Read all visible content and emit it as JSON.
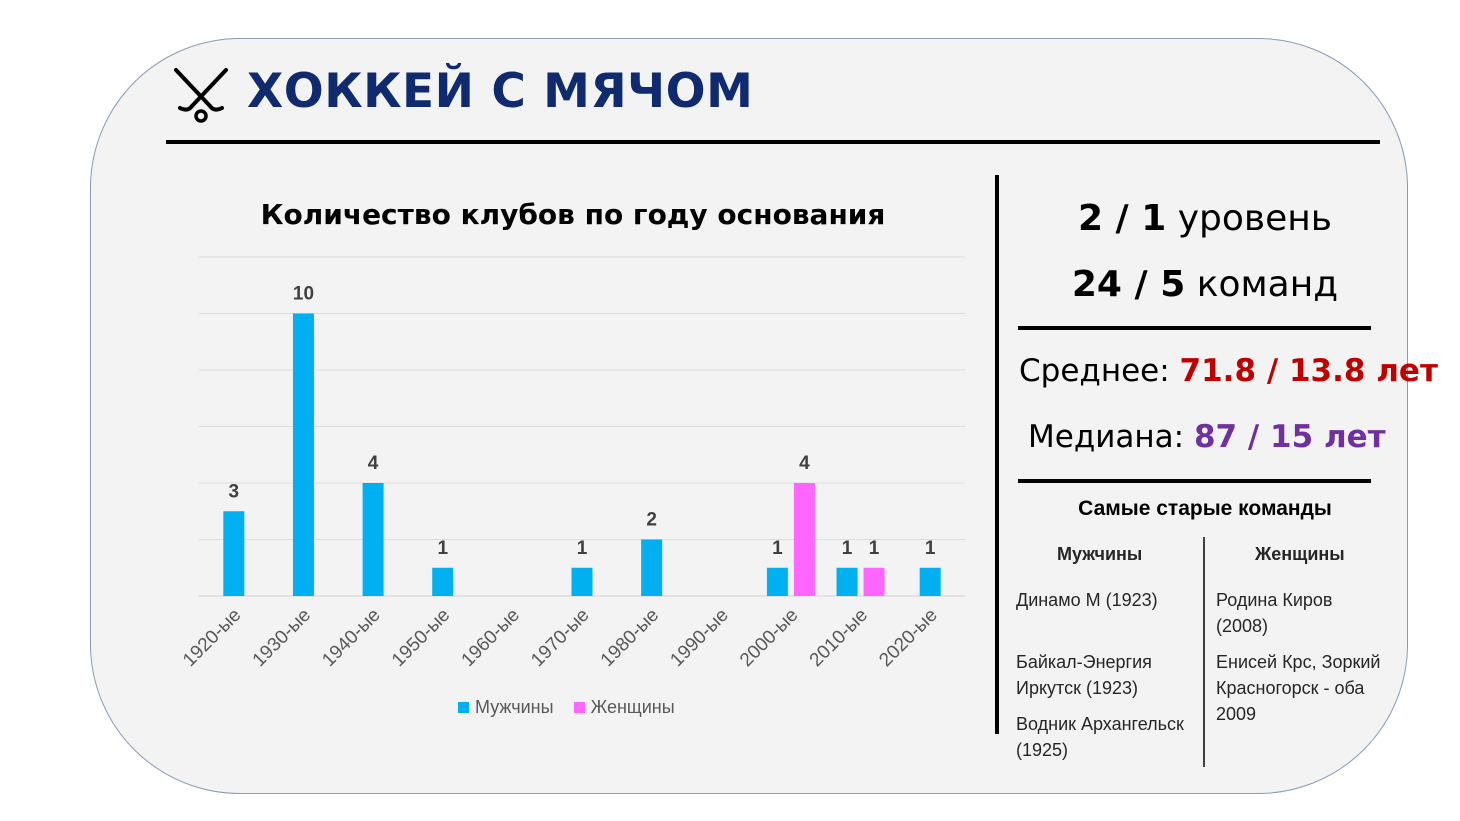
{
  "page": {
    "title": "ХОККЕЙ С МЯЧОМ",
    "icon": "crossed-hockey-sticks-icon"
  },
  "chart_data": {
    "type": "bar",
    "title": "Количество клубов по году основания",
    "xlabel": "",
    "ylabel": "",
    "categories": [
      "1920-ые",
      "1930-ые",
      "1940-ые",
      "1950-ые",
      "1960-ые",
      "1970-ые",
      "1980-ые",
      "1990-ые",
      "2000-ые",
      "2010-ые",
      "2020-ые"
    ],
    "series": [
      {
        "name": "Мужчины",
        "color": "#00b0f0",
        "values": [
          3,
          10,
          4,
          1,
          0,
          1,
          2,
          0,
          1,
          1,
          1
        ]
      },
      {
        "name": "Женщины",
        "color": "#ff66ff",
        "values": [
          0,
          0,
          0,
          0,
          0,
          0,
          0,
          0,
          4,
          1,
          0
        ]
      }
    ],
    "ylim": [
      0,
      12
    ],
    "grid": true,
    "legend": "bottom",
    "data_labels": true
  },
  "stats": {
    "levels_value": "2 / 1",
    "levels_label": "уровень",
    "teams_value": "24 / 5",
    "teams_label": "команд",
    "average_label": "Среднее:",
    "average_value": "71.8 / 13.8 лет",
    "median_label": "Медиана:",
    "median_value": "87 / 15 лет"
  },
  "oldest": {
    "title": "Самые старые команды",
    "men_header": "Мужчины",
    "women_header": "Женщины",
    "men": [
      "Динамо М (1923)",
      "Байкал-Энергия Иркутск (1923)",
      "Водник Архангельск (1925)"
    ],
    "women": [
      "Родина Киров (2008)",
      "Енисей Крс, Зоркий Красногорск - оба 2009"
    ]
  }
}
